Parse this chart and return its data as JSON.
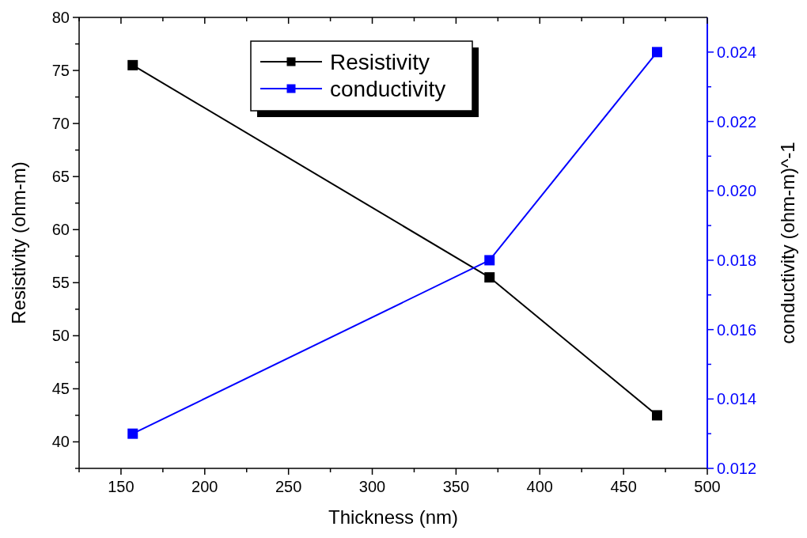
{
  "chart_data": {
    "type": "line",
    "xlabel": "Thickness (nm)",
    "ylabel": "Resistivity (ohm-m)",
    "y2label": "conductivity (ohm-m)^-1",
    "x": [
      157,
      370,
      470
    ],
    "series": [
      {
        "name": "Resistivity",
        "color": "#000000",
        "values": [
          75.5,
          55.5,
          42.5
        ]
      },
      {
        "name": "conductivity",
        "color": "#0000ff",
        "values": [
          0.013,
          0.018,
          0.024
        ],
        "axis": "y2"
      }
    ],
    "xlim": [
      125,
      500
    ],
    "xticks": [
      {
        "value": 125,
        "label": null
      },
      150,
      {
        "value": 175,
        "label": null
      },
      200,
      {
        "value": 225,
        "label": null
      },
      250,
      {
        "value": 275,
        "label": null
      },
      300,
      {
        "value": 325,
        "label": null
      },
      350,
      {
        "value": 375,
        "label": null
      },
      400,
      {
        "value": 425,
        "label": null
      },
      450,
      {
        "value": 475,
        "label": null
      },
      500
    ],
    "ylim": [
      37.5,
      80
    ],
    "yticks": [
      {
        "value": 37.5,
        "label": null
      },
      40,
      {
        "value": 42.5,
        "label": null
      },
      45,
      {
        "value": 47.5,
        "label": null
      },
      50,
      {
        "value": 52.5,
        "label": null
      },
      55,
      {
        "value": 57.5,
        "label": null
      },
      60,
      {
        "value": 62.5,
        "label": null
      },
      65,
      {
        "value": 67.5,
        "label": null
      },
      70,
      {
        "value": 72.5,
        "label": null
      },
      75,
      {
        "value": 77.5,
        "label": null
      },
      80
    ],
    "y2lim": [
      0.012,
      0.025
    ],
    "y2ticks": [
      {
        "value": 0.012,
        "label": "0.012"
      },
      {
        "value": 0.013,
        "label": null
      },
      {
        "value": 0.014,
        "label": "0.014"
      },
      {
        "value": 0.015,
        "label": null
      },
      {
        "value": 0.016,
        "label": "0.016"
      },
      {
        "value": 0.017,
        "label": null
      },
      {
        "value": 0.018,
        "label": "0.018"
      },
      {
        "value": 0.019,
        "label": null
      },
      {
        "value": 0.02,
        "label": "0.020"
      },
      {
        "value": 0.021,
        "label": null
      },
      {
        "value": 0.022,
        "label": "0.022"
      },
      {
        "value": 0.023,
        "label": null
      },
      {
        "value": 0.024,
        "label": "0.024"
      }
    ],
    "marker": "square",
    "line_style": "solid",
    "grid": false,
    "legend": "top"
  }
}
